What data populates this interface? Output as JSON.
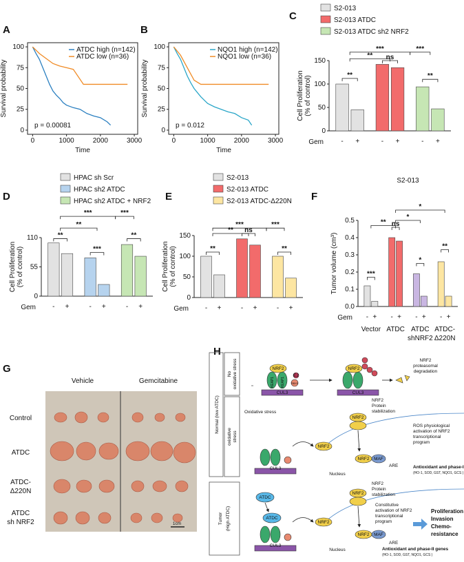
{
  "panels": [
    "A",
    "B",
    "C",
    "D",
    "E",
    "F",
    "G",
    "H"
  ],
  "chart_data": [
    {
      "type": "line",
      "xlabel": "Time",
      "ylabel": "Survival probability",
      "annotation": "p = 0.00081",
      "xlim": [
        -150,
        3100
      ],
      "ylim": [
        -5,
        105
      ],
      "xticks": [
        0,
        1000,
        2000,
        3000
      ],
      "yticks": [
        0,
        25,
        50,
        75,
        100
      ],
      "series": [
        {
          "name": "ATDC high (n=142)",
          "color": "#2a7fc0",
          "x": [
            0,
            100,
            200,
            300,
            400,
            500,
            600,
            700,
            800,
            900,
            1000,
            1200,
            1400,
            1600,
            1800,
            2000,
            2200,
            2300
          ],
          "values": [
            100,
            92,
            85,
            75,
            65,
            55,
            47,
            42,
            38,
            33,
            30,
            27,
            25,
            20,
            17,
            15,
            10,
            6
          ]
        },
        {
          "name": "ATDC low (n=36)",
          "color": "#f08a24",
          "x": [
            0,
            200,
            400,
            600,
            800,
            1000,
            1200,
            1500,
            2000,
            2800
          ],
          "values": [
            100,
            92,
            86,
            80,
            77,
            75,
            73,
            55,
            55,
            55
          ]
        }
      ]
    },
    {
      "type": "line",
      "xlabel": "Time",
      "ylabel": "Survival probability",
      "annotation": "p = 0.012",
      "xlim": [
        -150,
        3100
      ],
      "ylim": [
        -5,
        105
      ],
      "xticks": [
        0,
        1000,
        2000,
        3000
      ],
      "yticks": [
        0,
        25,
        50,
        75,
        100
      ],
      "series": [
        {
          "name": "NQO1 high (n=142)",
          "color": "#2aa6c8",
          "x": [
            0,
            100,
            200,
            300,
            400,
            500,
            600,
            700,
            800,
            900,
            1000,
            1200,
            1400,
            1600,
            1800,
            2000,
            2200,
            2300
          ],
          "values": [
            100,
            92,
            85,
            75,
            65,
            57,
            50,
            45,
            40,
            36,
            32,
            28,
            25,
            22,
            20,
            15,
            12,
            6
          ]
        },
        {
          "name": "NQO1 low (n=36)",
          "color": "#f08a24",
          "x": [
            0,
            200,
            400,
            600,
            800,
            1000,
            1200,
            1500,
            2000,
            2800
          ],
          "values": [
            100,
            90,
            75,
            60,
            55,
            55,
            55,
            55,
            55,
            55
          ]
        }
      ]
    },
    {
      "type": "bar",
      "ylabel": [
        "Cell Proliferation",
        "(% of control)"
      ],
      "xlabel": "Gem",
      "categories": [
        "-",
        "+"
      ],
      "ylim": [
        0,
        150
      ],
      "yticks": [
        0,
        50,
        100,
        150
      ],
      "series": [
        {
          "name": "S2-013",
          "color": "#e2e2e2",
          "values": [
            100,
            45
          ]
        },
        {
          "name": "S2-013 ATDC",
          "color": "#f26b6b",
          "values": [
            142,
            135
          ]
        },
        {
          "name": "S2-013 ATDC sh2 NRF2",
          "color": "#c6e6b4",
          "values": [
            94,
            47
          ]
        }
      ],
      "significance": [
        "**",
        "***",
        "**",
        "ns",
        "***",
        "**"
      ]
    },
    {
      "type": "bar",
      "ylabel": [
        "Cell Proliferation",
        "(% of control)"
      ],
      "xlabel": "Gem",
      "categories": [
        "-",
        "+"
      ],
      "ylim": [
        0,
        110
      ],
      "yticks": [
        0,
        55,
        110
      ],
      "series": [
        {
          "name": "HPAC sh Scr",
          "color": "#e2e2e2",
          "values": [
            100,
            80
          ]
        },
        {
          "name": "HPAC sh2 ATDC",
          "color": "#b6d3ee",
          "values": [
            72,
            22
          ]
        },
        {
          "name": "HPAC sh2 ATDC + NRF2",
          "color": "#c6e6b4",
          "values": [
            97,
            75
          ]
        }
      ],
      "significance": [
        "**",
        "***",
        "**",
        "***",
        "***",
        "**"
      ]
    },
    {
      "type": "bar",
      "ylabel": [
        "Cell Proliferation",
        "(% of control)"
      ],
      "xlabel": "Gem",
      "categories": [
        "-",
        "+"
      ],
      "ylim": [
        0,
        150
      ],
      "yticks": [
        0,
        50,
        100,
        150
      ],
      "series": [
        {
          "name": "S2-013",
          "color": "#e2e2e2",
          "values": [
            100,
            55
          ]
        },
        {
          "name": "S2-013 ATDC",
          "color": "#f26b6b",
          "values": [
            142,
            127
          ]
        },
        {
          "name": "S2-013 ATDC-Δ220N",
          "color": "#fde6a2",
          "values": [
            100,
            47
          ]
        }
      ],
      "significance": [
        "***",
        "**",
        "ns",
        "***",
        "**",
        "**"
      ]
    },
    {
      "type": "bar",
      "title": "S2-013",
      "ylabel": [
        "Tumor volume (cm³)"
      ],
      "xlabel": "Gem",
      "categories": [
        "-",
        "+"
      ],
      "ylim": [
        0,
        0.5
      ],
      "yticks": [
        {
          "value": 0,
          "label": "0.0"
        },
        0.1,
        0.2,
        0.3,
        0.4,
        0.5
      ],
      "group_labels": [
        [
          "Vector"
        ],
        [
          "ATDC"
        ],
        [
          "ATDC",
          "shNRF2"
        ],
        [
          "ATDC-",
          "Δ220N"
        ]
      ],
      "series": [
        {
          "color": "#e2e2e2",
          "values": [
            0.12,
            0.03
          ]
        },
        {
          "color": "#f26b6b",
          "values": [
            0.4,
            0.38
          ]
        },
        {
          "color": "#c9b6e2",
          "values": [
            0.19,
            0.06
          ]
        },
        {
          "color": "#fde6a2",
          "values": [
            0.26,
            0.06
          ]
        }
      ],
      "significance": [
        "**",
        "*",
        "*",
        "ns",
        "***",
        "*",
        "**"
      ]
    }
  ],
  "photo": {
    "columns": [
      "Vehicle",
      "Gemcitabine"
    ],
    "rows": [
      [
        "Control"
      ],
      [
        "ATDC"
      ],
      [
        "ATDC-",
        "Δ220N"
      ],
      [
        "ATDC",
        "sh NRF2"
      ]
    ],
    "scale": "1cm"
  },
  "diagram": {
    "normal": "Normal (low ATDC)",
    "no_stress": [
      "No",
      "oxidative stress"
    ],
    "stress": [
      "oxidative",
      "stress"
    ],
    "tumor": [
      "Tumor",
      "(High ATDC)"
    ],
    "nrf2": "NRF2",
    "keap1": "KEAP1",
    "cul3": "CUL3",
    "rbx1": "RBX1",
    "e2": "E2",
    "atdc": "ATDC",
    "maf": "MAF",
    "degradation": [
      "NRF2",
      "proteasomal",
      "degradation"
    ],
    "oxidative": "Oxidative stress",
    "stabilization": [
      "NRF2",
      "Protein",
      "stabilization"
    ],
    "ros": [
      "ROS physiological",
      "activation of NRF2",
      "transcriptional",
      "program"
    ],
    "constitutive": [
      "Constitutive",
      "activation of NRF2",
      "transcriptional",
      "program"
    ],
    "nucleus": "Nucleus",
    "are": "ARE",
    "genes": [
      "Antioxidant and phase-II genes",
      "(HO-1, SOD, GST, NQO1, GCS )"
    ],
    "outcome": [
      "Proliferation",
      "Invasion",
      "Chemo-",
      "resistance"
    ]
  }
}
